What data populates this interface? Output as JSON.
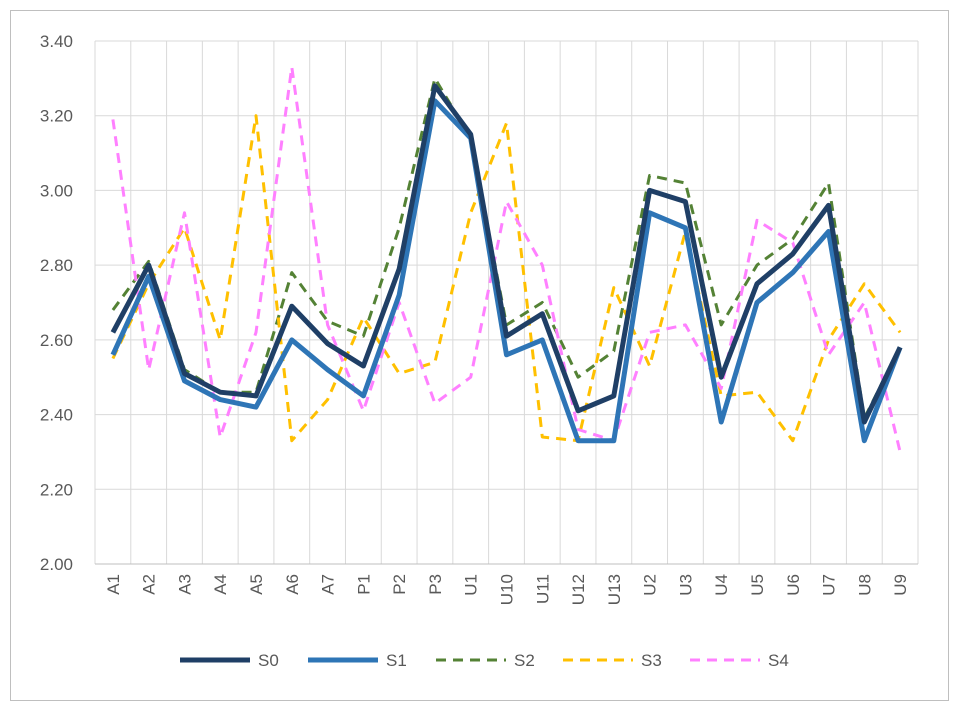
{
  "chart_data": {
    "type": "line",
    "title": "",
    "xlabel": "",
    "ylabel": "",
    "ylim": [
      2.0,
      3.4
    ],
    "ytick_step": 0.2,
    "grid": true,
    "legend_placement": "bottom",
    "categories": [
      "A1",
      "A2",
      "A3",
      "A4",
      "A5",
      "A6",
      "A7",
      "P1",
      "P2",
      "P3",
      "U1",
      "U10",
      "U11",
      "U12",
      "U13",
      "U2",
      "U3",
      "U4",
      "U5",
      "U6",
      "U7",
      "U8",
      "U9"
    ],
    "yticks": [
      "2.00",
      "2.20",
      "2.40",
      "2.60",
      "2.80",
      "3.00",
      "3.20",
      "3.40"
    ],
    "series": [
      {
        "name": "S0",
        "color": "#1f3f66",
        "style": "solid",
        "width": 5,
        "values": [
          2.62,
          2.8,
          2.51,
          2.46,
          2.45,
          2.69,
          2.59,
          2.53,
          2.79,
          3.28,
          3.15,
          2.61,
          2.67,
          2.41,
          2.45,
          3.0,
          2.97,
          2.5,
          2.75,
          2.83,
          2.96,
          2.38,
          2.58
        ]
      },
      {
        "name": "S1",
        "color": "#2e75b6",
        "style": "solid",
        "width": 5,
        "values": [
          2.56,
          2.77,
          2.49,
          2.44,
          2.42,
          2.6,
          2.52,
          2.45,
          2.72,
          3.24,
          3.14,
          2.56,
          2.6,
          2.33,
          2.33,
          2.94,
          2.9,
          2.38,
          2.7,
          2.78,
          2.89,
          2.33,
          2.58
        ]
      },
      {
        "name": "S2",
        "color": "#548235",
        "style": "dashed",
        "width": 3,
        "values": [
          2.68,
          2.81,
          2.52,
          2.46,
          2.46,
          2.78,
          2.65,
          2.61,
          2.9,
          3.3,
          3.14,
          2.64,
          2.7,
          2.5,
          2.57,
          3.04,
          3.02,
          2.64,
          2.8,
          2.87,
          3.02,
          2.39,
          2.58
        ]
      },
      {
        "name": "S3",
        "color": "#ffc000",
        "style": "dashed",
        "width": 3,
        "values": [
          2.55,
          2.75,
          2.9,
          2.6,
          3.2,
          2.33,
          2.44,
          2.66,
          2.51,
          2.54,
          2.94,
          3.18,
          2.34,
          2.33,
          2.74,
          2.53,
          2.89,
          2.45,
          2.46,
          2.33,
          2.6,
          2.75,
          2.62
        ]
      },
      {
        "name": "S4",
        "color": "#ff80ff",
        "style": "dashed",
        "width": 3,
        "values": [
          3.19,
          2.52,
          2.94,
          2.34,
          2.62,
          3.33,
          2.64,
          2.41,
          2.7,
          2.43,
          2.5,
          2.97,
          2.8,
          2.36,
          2.33,
          2.62,
          2.64,
          2.47,
          2.92,
          2.86,
          2.56,
          2.7,
          2.3
        ]
      }
    ]
  }
}
